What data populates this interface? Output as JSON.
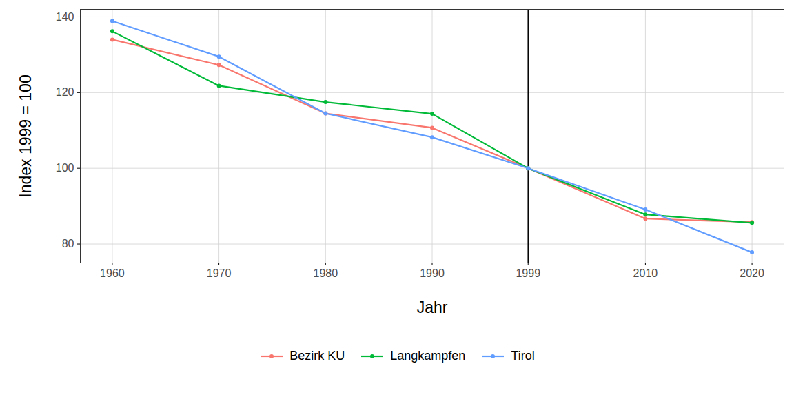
{
  "chart_data": {
    "type": "line",
    "x_label": "Jahr",
    "y_label": "Index 1999 = 100",
    "x": [
      1960,
      1970,
      1980,
      1990,
      1999,
      2010,
      2020
    ],
    "series": [
      {
        "name": "Bezirk KU",
        "color": "#F8766D",
        "marker": "circle",
        "values": [
          134.0,
          127.3,
          114.5,
          110.7,
          100,
          86.7,
          85.8
        ]
      },
      {
        "name": "Langkampfen",
        "color": "#00BA38",
        "marker": "circle",
        "values": [
          136.2,
          121.8,
          117.5,
          114.4,
          100,
          87.8,
          85.6
        ]
      },
      {
        "name": "Tirol",
        "color": "#619CFF",
        "marker": "circle",
        "values": [
          138.9,
          129.5,
          114.5,
          108.2,
          100,
          89.1,
          77.8
        ]
      }
    ],
    "xlim": [
      1957,
      2023
    ],
    "xticks": [
      1960,
      1970,
      1980,
      1990,
      1999,
      2010,
      2020
    ],
    "ylim": [
      75,
      142
    ],
    "yticks": [
      80,
      100,
      120,
      140
    ],
    "reference_line": 1999,
    "grid": true,
    "legend": "bottom"
  }
}
